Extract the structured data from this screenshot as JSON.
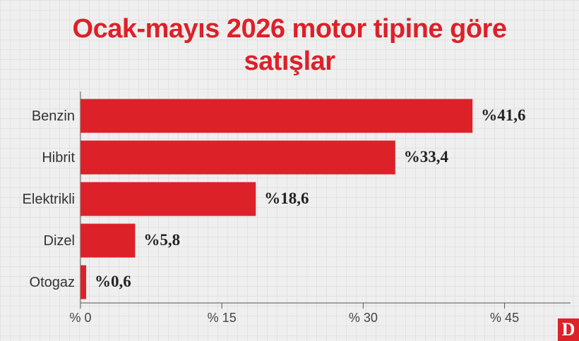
{
  "chart_data": {
    "type": "bar",
    "orientation": "horizontal",
    "title": "Ocak-mayıs 2026 motor tipine göre satışlar",
    "categories": [
      "Benzin",
      "Hibrit",
      "Elektrikli",
      "Dizel",
      "Otogaz"
    ],
    "values": [
      41.6,
      33.4,
      18.6,
      5.8,
      0.6
    ],
    "value_labels": [
      "%41,6",
      "%33,4",
      "%18,6",
      "%5,8",
      "%0,6"
    ],
    "color": "#dc2129",
    "xlim": [
      0,
      52
    ],
    "xticks": [
      {
        "value": 0,
        "label": "% 0"
      },
      {
        "value": 15,
        "label": "% 15"
      },
      {
        "value": 30,
        "label": "% 30"
      },
      {
        "value": 45,
        "label": "% 45"
      }
    ]
  },
  "brand": "D"
}
